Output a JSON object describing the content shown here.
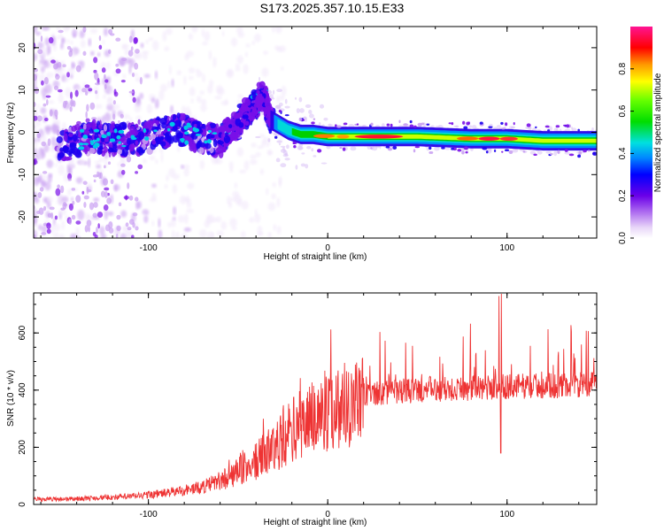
{
  "title": "S173.2025.357.10.15.E33",
  "chart_data": [
    {
      "type": "heatmap",
      "title": "S173.2025.357.10.15.E33",
      "xlabel": "Height of straight line (km)",
      "ylabel": "Frequency (Hz)",
      "xlim": [
        -164,
        150
      ],
      "ylim": [
        -25,
        25
      ],
      "xticks": [
        -100,
        0,
        100
      ],
      "yticks": [
        -20,
        -10,
        0,
        10,
        20
      ],
      "grid": false,
      "ridge": {
        "x": [
          -145,
          -130,
          -115,
          -100,
          -85,
          -72,
          -60,
          -50,
          -42,
          -36,
          -32,
          -28,
          -22,
          -15,
          -8,
          0,
          20,
          50,
          80,
          100,
          120,
          150
        ],
        "y": [
          -3,
          -1,
          -2,
          -1,
          1,
          -1,
          -2,
          2,
          6,
          9,
          3,
          2,
          0.5,
          -0.5,
          -0.5,
          -1,
          -1,
          -1,
          -1.5,
          -1.5,
          -2,
          -2
        ]
      },
      "colorbar": {
        "label": "Normalized spectral amplitude",
        "ticks": [
          0.0,
          0.2,
          0.4,
          0.6,
          0.8
        ],
        "range": [
          0,
          1
        ]
      }
    },
    {
      "type": "line",
      "xlabel": "Height of straight line (km)",
      "ylabel": "SNR (10 * v/v)",
      "xlim": [
        -164,
        150
      ],
      "ylim": [
        0,
        740
      ],
      "xticks": [
        -100,
        0,
        100
      ],
      "yticks": [
        0,
        200,
        400,
        600
      ],
      "grid": false,
      "series": [
        {
          "name": "SNR",
          "color": "#ee3333",
          "envelope_x": [
            -164,
            -140,
            -110,
            -90,
            -70,
            -55,
            -40,
            -30,
            -20,
            -10,
            0,
            10,
            20,
            30,
            50,
            70,
            90,
            110,
            130,
            150
          ],
          "envelope_y": [
            18,
            20,
            28,
            40,
            60,
            95,
            150,
            200,
            260,
            300,
            330,
            355,
            375,
            385,
            395,
            400,
            405,
            410,
            412,
            415
          ]
        }
      ]
    }
  ],
  "colors": {
    "line": "#ee3333",
    "axis": "#000000"
  }
}
